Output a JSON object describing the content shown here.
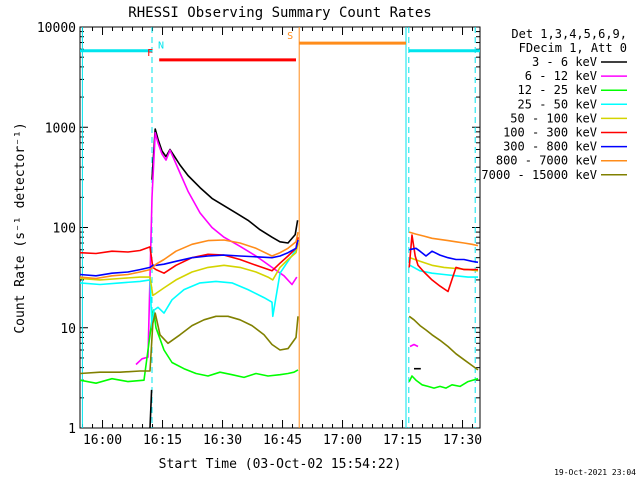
{
  "chart_data": {
    "type": "line",
    "title": "RHESSI Observing Summary Count Rates",
    "xlabel": "Start Time (03-Oct-02 15:54:22)",
    "ylabel": "Count Rate (s⁻¹ detector⁻¹)",
    "yscale": "log",
    "ylim": [
      1,
      10000
    ],
    "x_units": "minutes since 15:54:22",
    "xlim": [
      0,
      100
    ],
    "y_ticks": [
      {
        "value": 1,
        "label": "1"
      },
      {
        "value": 10,
        "label": "10"
      },
      {
        "value": 100,
        "label": "100"
      },
      {
        "value": 1000,
        "label": "1000"
      },
      {
        "value": 10000,
        "label": "10000"
      }
    ],
    "x_ticks": [
      {
        "value": 5.63,
        "label": "16:00"
      },
      {
        "value": 20.63,
        "label": "16:15"
      },
      {
        "value": 35.63,
        "label": "16:30"
      },
      {
        "value": 50.63,
        "label": "16:45"
      },
      {
        "value": 65.63,
        "label": "17:00"
      },
      {
        "value": 80.63,
        "label": "17:15"
      },
      {
        "value": 95.63,
        "label": "17:30"
      }
    ],
    "legend": {
      "header": [
        "Det 1,3,4,5,6,9,",
        "FDecim 1, Att 0"
      ],
      "placement": "right",
      "entries": [
        {
          "label": "3 - 6 keV",
          "color": "#000000"
        },
        {
          "label": "6 - 12 keV",
          "color": "#ff00ff"
        },
        {
          "label": "12 - 25 keV",
          "color": "#00ff00"
        },
        {
          "label": "25 - 50 keV",
          "color": "#00ffff"
        },
        {
          "label": "50 - 100 keV",
          "color": "#d4d400"
        },
        {
          "label": "100 - 300 keV",
          "color": "#ff0000"
        },
        {
          "label": "300 - 800 keV",
          "color": "#0000ff"
        },
        {
          "label": "800 - 7000 keV",
          "color": "#ff8c1a"
        },
        {
          "label": "7000 - 15000 keV",
          "color": "#808000"
        }
      ]
    },
    "flags": [
      {
        "label": "N",
        "color": "#00e5ee",
        "segments": [
          [
            0,
            18.0
          ],
          [
            82.2,
            100
          ]
        ],
        "level": 5800
      },
      {
        "label": "F",
        "color": "#ff0000",
        "segments": [
          [
            19.8,
            54.0
          ]
        ],
        "level": 4700
      },
      {
        "label": "S",
        "color": "#ff8c1a",
        "segments": [
          [
            54.8,
            81.5
          ]
        ],
        "level": 6900
      }
    ],
    "vlines": [
      {
        "x": 0.6,
        "color": "#00e5ee",
        "style": "solid"
      },
      {
        "x": 18.0,
        "color": "#00e5ee",
        "style": "dashed"
      },
      {
        "x": 54.8,
        "color": "#ff8c1a",
        "style": "solid"
      },
      {
        "x": 81.5,
        "color": "#00e5ee",
        "style": "solid"
      },
      {
        "x": 82.2,
        "color": "#00e5ee",
        "style": "dashed"
      },
      {
        "x": 98.8,
        "color": "#00e5ee",
        "style": "dashed"
      }
    ],
    "series": [
      {
        "name": "3 - 6 keV",
        "color": "#000000",
        "segments": [
          {
            "x": [
              17.5,
              17.9
            ],
            "y": [
              1,
              2.4
            ]
          },
          {
            "x": [
              18.0,
              18.8,
              19.5,
              20.5,
              21.5,
              22.5,
              23.5,
              25,
              27,
              30,
              33,
              36,
              39,
              42,
              45,
              48,
              50,
              52,
              53.8,
              54.4
            ],
            "y": [
              300,
              960,
              760,
              580,
              510,
              600,
              520,
              420,
              330,
              250,
              195,
              165,
              140,
              118,
              95,
              80,
              72,
              70,
              85,
              118
            ]
          },
          {
            "x": [
              83.5,
              84.6,
              85.2
            ],
            "y": [
              3.9,
              3.9,
              3.9
            ]
          }
        ]
      },
      {
        "name": "6 - 12 keV",
        "color": "#ff00ff",
        "segments": [
          {
            "x": [
              14,
              15.5,
              17,
              18,
              18.8,
              19.5,
              20.5,
              21.5,
              22.5,
              23.5,
              25,
              27,
              30,
              33,
              36,
              40,
              44,
              48,
              51,
              53,
              54.2
            ],
            "y": [
              4.3,
              4.9,
              5.1,
              200,
              880,
              700,
              540,
              470,
              590,
              480,
              350,
              230,
              140,
              100,
              80,
              65,
              52,
              40,
              33,
              27,
              32
            ]
          },
          {
            "x": [
              82.5,
              83.5,
              84.5
            ],
            "y": [
              6.5,
              6.8,
              6.5
            ]
          }
        ]
      },
      {
        "name": "12 - 25 keV",
        "color": "#00ff00",
        "segments": [
          {
            "x": [
              0,
              4,
              8,
              12,
              16,
              18,
              18.4,
              19,
              21,
              23,
              26,
              29,
              32,
              35,
              38,
              41,
              44,
              47,
              50,
              52,
              53.5,
              54.5
            ],
            "y": [
              3.0,
              2.8,
              3.1,
              2.9,
              3.0,
              12,
              15,
              10,
              6.0,
              4.5,
              3.9,
              3.5,
              3.3,
              3.6,
              3.4,
              3.2,
              3.5,
              3.3,
              3.4,
              3.5,
              3.6,
              3.8
            ]
          },
          {
            "x": [
              82.3,
              83,
              84,
              85.5,
              87,
              88.5,
              90,
              91.5,
              93,
              95,
              97,
              99.5
            ],
            "y": [
              2.9,
              3.3,
              3.0,
              2.7,
              2.6,
              2.5,
              2.6,
              2.5,
              2.7,
              2.6,
              2.9,
              3.1
            ]
          }
        ]
      },
      {
        "name": "25 - 50 keV",
        "color": "#00ffff",
        "segments": [
          {
            "x": [
              0,
              5,
              10,
              15,
              17.5,
              18,
              18.5,
              19.5,
              21,
              23,
              26,
              30,
              34,
              38,
              42,
              46,
              48,
              48.2,
              50,
              52,
              54,
              54.5
            ],
            "y": [
              28,
              27,
              28,
              29,
              30,
              10,
              15,
              16,
              14,
              19,
              24,
              28,
              29,
              28,
              24,
              20,
              18,
              13,
              35,
              46,
              60,
              75
            ]
          },
          {
            "x": [
              82.5,
              85,
              88,
              91,
              94,
              97,
              99.5
            ],
            "y": [
              42,
              37,
              35,
              34,
              33,
              32,
              32
            ]
          }
        ]
      },
      {
        "name": "50 - 100 keV",
        "color": "#d4d400",
        "segments": [
          {
            "x": [
              0,
              5,
              10,
              15,
              17.5,
              18.2,
              19,
              21,
              24,
              28,
              32,
              36,
              40,
              44,
              47,
              48.2,
              50,
              52,
              54,
              54.5
            ],
            "y": [
              31,
              30,
              31,
              32,
              32,
              21,
              22,
              25,
              30,
              36,
              40,
              42,
              40,
              36,
              32,
              30,
              40,
              48,
              56,
              70
            ]
          },
          {
            "x": [
              82.5,
              85,
              88,
              91,
              94,
              97,
              99.5
            ],
            "y": [
              50,
              46,
              42,
              40,
              39,
              38,
              37
            ]
          }
        ]
      },
      {
        "name": "100 - 300 keV",
        "color": "#ff0000",
        "segments": [
          {
            "x": [
              0,
              4,
              8,
              12,
              15,
              17.5,
              18.2,
              19,
              21,
              24,
              28,
              32,
              36,
              40,
              44,
              48,
              50,
              52,
              54,
              54.5
            ],
            "y": [
              56,
              55,
              58,
              57,
              59,
              64,
              40,
              38,
              35,
              42,
              50,
              54,
              53,
              48,
              42,
              37,
              44,
              52,
              62,
              80
            ]
          },
          {
            "x": [
              82.3,
              83,
              83.8,
              84.5,
              86,
              88,
              90,
              92,
              94,
              96,
              98,
              99.5
            ],
            "y": [
              40,
              84,
              52,
              42,
              36,
              30,
              26,
              23,
              40,
              38,
              38,
              38
            ]
          }
        ]
      },
      {
        "name": "300 - 800 keV",
        "color": "#0000ff",
        "segments": [
          {
            "x": [
              0,
              4,
              8,
              12,
              15,
              17.5,
              18.2,
              19,
              21,
              24,
              28,
              32,
              36,
              40,
              44,
              48,
              50,
              52,
              54,
              54.5
            ],
            "y": [
              34,
              33,
              35,
              36,
              38,
              40,
              42,
              42,
              43,
              46,
              50,
              52,
              53,
              52,
              51,
              50,
              52,
              56,
              62,
              75
            ]
          },
          {
            "x": [
              82.3,
              84,
              85,
              86.5,
              88,
              90,
              92,
              94,
              96,
              98,
              99.5
            ],
            "y": [
              60,
              62,
              58,
              52,
              58,
              53,
              50,
              48,
              48,
              46,
              45
            ]
          }
        ]
      },
      {
        "name": "800 - 7000 keV",
        "color": "#ff8c1a",
        "segments": [
          {
            "x": [
              0,
              4,
              8,
              12,
              15,
              17.5,
              18.2,
              19,
              21,
              24,
              28,
              32,
              36,
              40,
              44,
              48,
              50,
              52,
              54,
              54.5
            ],
            "y": [
              32,
              31,
              33,
              34,
              36,
              38,
              40,
              43,
              48,
              58,
              68,
              74,
              75,
              70,
              62,
              52,
              56,
              62,
              72,
              90
            ]
          },
          {
            "x": [
              82.3,
              84,
              86,
              88,
              90,
              92,
              94,
              96,
              98,
              99.5
            ],
            "y": [
              90,
              86,
              82,
              78,
              76,
              74,
              72,
              70,
              68,
              66
            ]
          }
        ]
      },
      {
        "name": "7000 - 15000 keV",
        "color": "#808000",
        "segments": [
          {
            "x": [
              0,
              5,
              10,
              15,
              17.5,
              18.2,
              18.8,
              20,
              22,
              25,
              28,
              31,
              34,
              37,
              40,
              43,
              46,
              48,
              50,
              52,
              54,
              54.5
            ],
            "y": [
              3.5,
              3.6,
              3.6,
              3.7,
              3.7,
              11,
              14,
              8.5,
              7.0,
              8.5,
              10.5,
              12,
              13,
              13,
              12,
              10.5,
              8.5,
              6.8,
              6.0,
              6.2,
              8.0,
              13
            ]
          },
          {
            "x": [
              82.3,
              83.5,
              85,
              86.5,
              88,
              90,
              92,
              94,
              96,
              98,
              99.5
            ],
            "y": [
              13,
              12,
              10.5,
              9.5,
              8.5,
              7.5,
              6.5,
              5.5,
              4.8,
              4.2,
              3.8
            ]
          }
        ]
      }
    ]
  },
  "footer": {
    "timestamp": "19-Oct-2021 23:04"
  }
}
